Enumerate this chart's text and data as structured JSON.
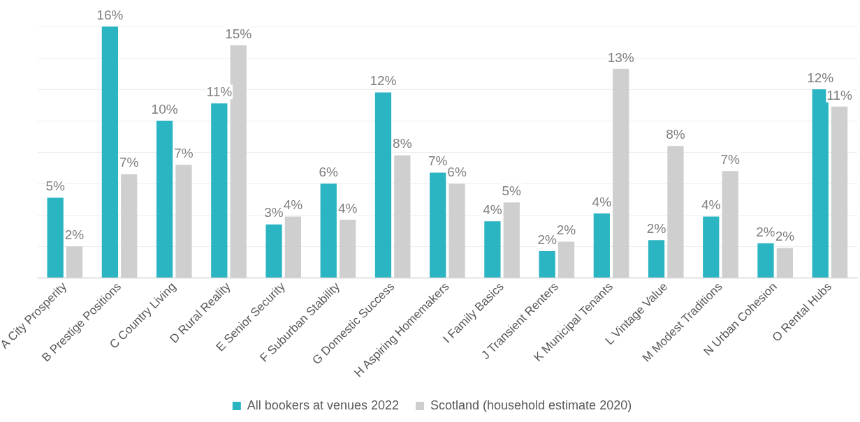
{
  "chart_data": {
    "type": "bar",
    "categories": [
      "A City Prosperity",
      "B Prestige Positions",
      "C Country Living",
      "D Rural Reality",
      "E Senior Security",
      "F Suburban Stability",
      "G Domestic Success",
      "H Aspiring Homemakers",
      "I Family Basics",
      "J Transient Renters",
      "K Municipal Tenants",
      "L Vintage Value",
      "M Modest Traditions",
      "N Urban Cohesion",
      "O Rental Hubs"
    ],
    "series": [
      {
        "name": "All bookers at venues 2022",
        "color": "#2bb5c3",
        "values": [
          5.1,
          16.0,
          10.0,
          11.1,
          3.4,
          6.0,
          11.8,
          6.7,
          3.6,
          1.7,
          4.1,
          2.4,
          3.9,
          2.2,
          12.0
        ],
        "value_labels": [
          "5%",
          "16%",
          "10%",
          "11%",
          "3%",
          "6%",
          "12%",
          "7%",
          "4%",
          "2%",
          "4%",
          "2%",
          "4%",
          "2%",
          "12%"
        ]
      },
      {
        "name": "Scotland (household estimate 2020)",
        "color": "#cfcfcf",
        "values": [
          2.0,
          6.6,
          7.2,
          14.8,
          3.9,
          3.7,
          7.8,
          6.0,
          4.8,
          2.3,
          13.3,
          8.4,
          6.8,
          1.9,
          10.9
        ],
        "value_labels": [
          "2%",
          "7%",
          "7%",
          "15%",
          "4%",
          "4%",
          "8%",
          "6%",
          "5%",
          "2%",
          "13%",
          "8%",
          "7%",
          "2%",
          "11%"
        ]
      }
    ],
    "ylim": [
      0,
      16
    ],
    "yticks": [
      {
        "value": 0,
        "label": null
      },
      {
        "value": 2,
        "label": null
      },
      {
        "value": 4,
        "label": null
      },
      {
        "value": 6,
        "label": null
      },
      {
        "value": 8,
        "label": null
      },
      {
        "value": 10,
        "label": null
      },
      {
        "value": 12,
        "label": null
      },
      {
        "value": 14,
        "label": null
      },
      {
        "value": 16,
        "label": null
      }
    ],
    "tick_labels": "x",
    "grid": "y",
    "legend": "bottom"
  }
}
